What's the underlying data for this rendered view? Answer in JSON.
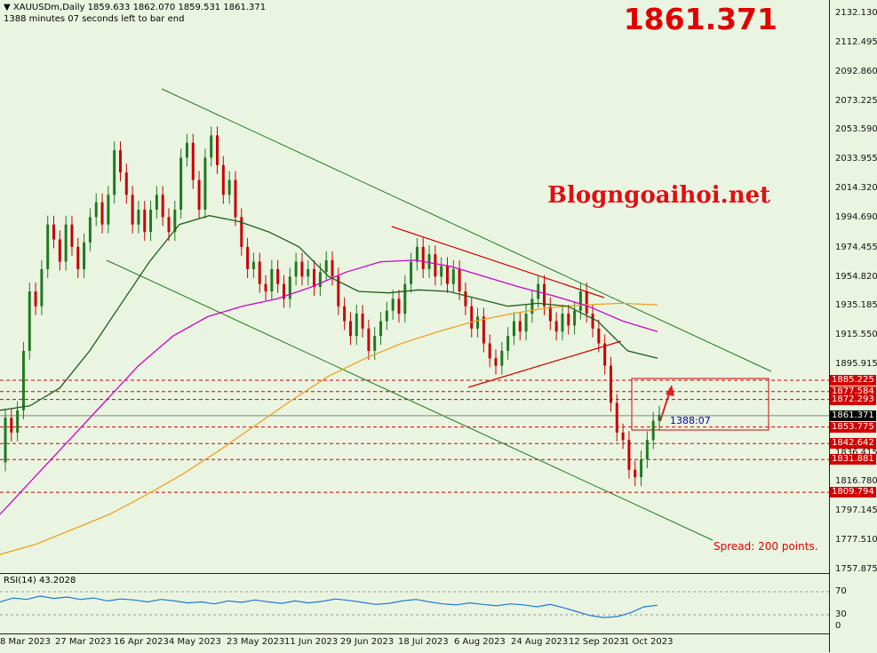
{
  "header": {
    "title": "XAUUSDm,Daily  1859.633 1862.070 1859.531 1861.371",
    "subtitle": "1388 minutes 07 seconds left to bar end"
  },
  "big_price": "1861.371",
  "watermark": "Blogngoaihoi.net",
  "spread_text": "Spread: 200 points.",
  "countdown": "1388:07",
  "rsi_label": "RSI(14) 43.2028",
  "colors": {
    "background": "#eaf5e1",
    "bull_candle": "#1f7a1f",
    "bear_candle": "#c80000",
    "ma_green": "#1c5e1c",
    "ma_magenta": "#d000d0",
    "ma_orange": "#f0a020",
    "level_red": "#d40000",
    "rsi_line": "#1e78d8"
  },
  "price_axis_labels": [
    "2132.130",
    "2112.495",
    "2092.860",
    "2073.225",
    "2053.590",
    "2033.955",
    "2014.320",
    "1994.690",
    "1974.455",
    "1954.820",
    "1935.185",
    "1915.550",
    "1895.915",
    "1816.780",
    "1797.145",
    "1777.510",
    "1757.875"
  ],
  "level_tags": [
    "1885.225",
    "1877.584",
    "1872.293",
    "1853.775",
    "1842.642",
    "1831.881",
    "1809.794"
  ],
  "current_tag": "1861.371",
  "current_tag_partial": "1836.415",
  "rsi_axis_labels": [
    "70",
    "30",
    "0"
  ],
  "time_axis_labels": [
    "8 Mar 2023",
    "27 Mar 2023",
    "16 Apr 2023",
    "4 May 2023",
    "23 May 2023",
    "11 Jun 2023",
    "29 Jun 2023",
    "18 Jul 2023",
    "6 Aug 2023",
    "24 Aug 2023",
    "12 Sep 2023",
    "1 Oct 2023"
  ],
  "chart_data": {
    "type": "candlestick",
    "title": "XAUUSDm,Daily",
    "ylim": [
      1750,
      2140
    ],
    "last_close": 1861.371,
    "horizontal_levels": [
      1885.225,
      1877.584,
      1872.293,
      1853.775,
      1842.642,
      1831.881,
      1809.794
    ],
    "rsi": {
      "period": 14,
      "value": 43.2028,
      "levels": [
        70,
        30
      ],
      "range": [
        0,
        100
      ]
    }
  }
}
